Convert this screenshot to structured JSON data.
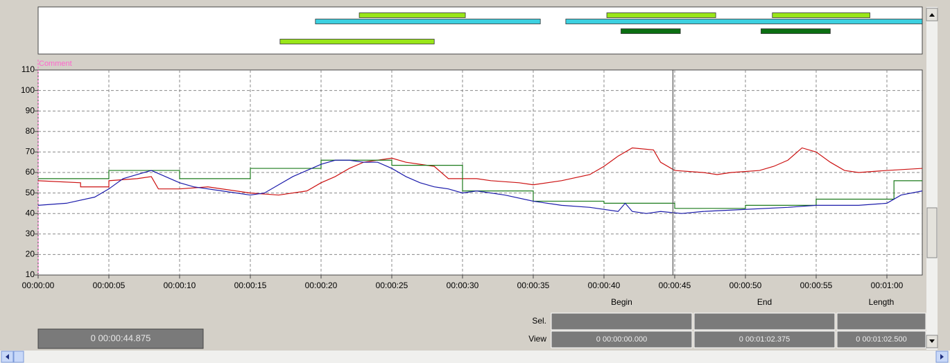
{
  "chart_data": {
    "type": "line",
    "comment_label": "Comment",
    "xlim": [
      0,
      62.5
    ],
    "ylim": [
      10,
      110
    ],
    "xticks": [
      {
        "value": 0,
        "label": "00:00:00"
      },
      {
        "value": 5,
        "label": "00:00:05"
      },
      {
        "value": 10,
        "label": "00:00:10"
      },
      {
        "value": 15,
        "label": "00:00:15"
      },
      {
        "value": 20,
        "label": "00:00:20"
      },
      {
        "value": 25,
        "label": "00:00:25"
      },
      {
        "value": 30,
        "label": "00:00:30"
      },
      {
        "value": 35,
        "label": "00:00:35"
      },
      {
        "value": 40,
        "label": "00:00:40"
      },
      {
        "value": 45,
        "label": "00:00:45"
      },
      {
        "value": 50,
        "label": "00:00:50"
      },
      {
        "value": 55,
        "label": "00:00:55"
      },
      {
        "value": 60,
        "label": "00:01:00"
      }
    ],
    "yticks": [
      10,
      20,
      30,
      40,
      50,
      60,
      70,
      80,
      90,
      100,
      110
    ],
    "grid": true,
    "cursor": 44.875,
    "series": [
      {
        "color": "#cc1111",
        "x": [
          0,
          3,
          3,
          5,
          5,
          7,
          8,
          8.5,
          10,
          12,
          15,
          17,
          19,
          20,
          21,
          22,
          23,
          25,
          26,
          28,
          29,
          31,
          32,
          34,
          35,
          37,
          39,
          40,
          41,
          42,
          43.5,
          44,
          45,
          47,
          48,
          49,
          51,
          52,
          53,
          54,
          55,
          56,
          57,
          58,
          60,
          62.5
        ],
        "values": [
          56,
          55,
          53,
          53,
          56,
          57,
          58,
          52,
          52,
          53,
          50,
          49,
          51,
          55,
          58,
          62,
          65,
          67,
          65,
          63,
          57,
          57,
          56,
          55,
          54,
          56,
          59,
          63,
          68,
          72,
          71,
          65,
          61,
          60,
          59,
          60,
          61,
          63,
          66,
          72,
          70,
          65,
          61,
          60,
          61,
          62
        ]
      },
      {
        "color": "#1a7a1a",
        "x": [
          0,
          5,
          5,
          10,
          10,
          15,
          15,
          20,
          20,
          25,
          25,
          30,
          30,
          35,
          35,
          40,
          40,
          45,
          45,
          50,
          50,
          55,
          55,
          60.5,
          60.5,
          62.5
        ],
        "values": [
          57,
          57,
          61,
          61,
          57,
          57,
          62,
          62,
          66,
          66,
          63.5,
          63.5,
          51,
          51,
          46,
          46,
          45,
          45,
          42.5,
          42.5,
          44,
          44,
          47,
          47,
          56,
          56
        ]
      },
      {
        "color": "#1a1aaa",
        "x": [
          0,
          2,
          4,
          5,
          6,
          7,
          8,
          9,
          10,
          11,
          13,
          15,
          16,
          17,
          18,
          19,
          20,
          21,
          22,
          23,
          24,
          25,
          26,
          27,
          28,
          29,
          30,
          31,
          33,
          35,
          37,
          39,
          41,
          41.5,
          42,
          43,
          44,
          45.5,
          47,
          50,
          53,
          55,
          58,
          60,
          61,
          62.5
        ],
        "values": [
          44,
          45,
          48,
          52,
          57,
          59,
          61,
          58,
          55,
          53,
          51,
          49,
          50,
          54,
          58,
          61,
          64,
          66,
          66,
          65,
          65,
          62,
          58,
          55,
          53,
          52,
          50,
          51,
          49,
          46,
          44,
          43,
          41,
          45,
          41,
          40,
          41,
          40,
          41,
          42,
          43,
          44,
          44,
          45,
          49,
          51
        ]
      }
    ]
  },
  "tracks": [
    {
      "color": "#99e619",
      "segments": [
        [
          22.7,
          30.2
        ],
        [
          40.2,
          47.9
        ],
        [
          51.9,
          58.8
        ]
      ]
    },
    {
      "color": "#3dd0e0",
      "segments": [
        [
          19.6,
          35.5
        ],
        [
          37.3,
          62.5
        ]
      ]
    },
    {
      "color": "#0b6e12",
      "segments": [
        [
          41.2,
          45.4
        ],
        [
          51.1,
          56.0
        ]
      ]
    },
    {
      "color": "#99e619",
      "segments": [
        [
          17.1,
          28.0
        ]
      ]
    }
  ],
  "cursor_display": "0 00:00:44.875",
  "table": {
    "columns": [
      "Begin",
      "End",
      "Length"
    ],
    "rows": [
      {
        "label": "Sel."
      },
      {
        "label": "View",
        "cells": [
          "0 00:00:00.000",
          "0 00:01:02.375",
          "0 00:01:02.500"
        ]
      }
    ]
  }
}
